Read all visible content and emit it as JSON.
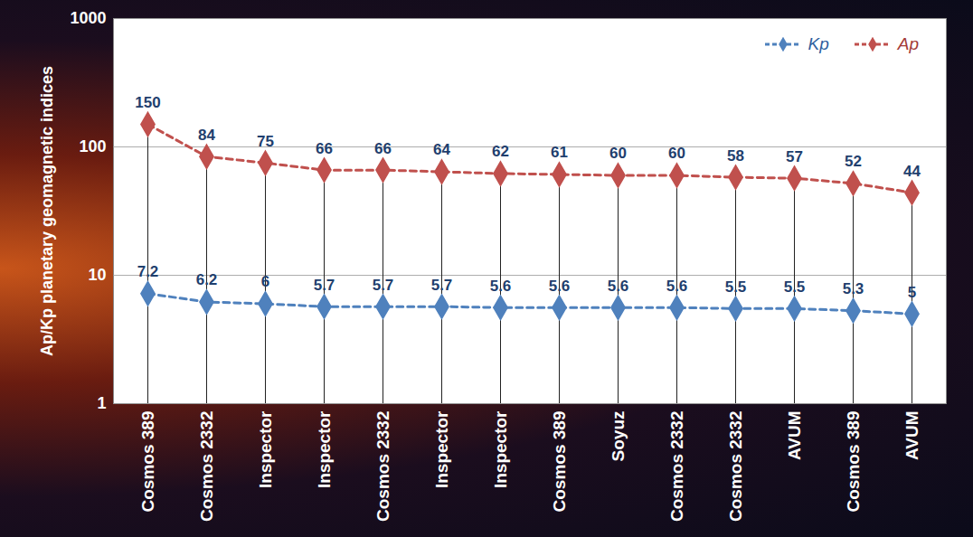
{
  "chart_data": {
    "type": "line",
    "categories": [
      "Cosmos 389",
      "Cosmos 2332",
      "Inspector",
      "Inspector",
      "Cosmos 2332",
      "Inspector",
      "Inspector",
      "Cosmos 389",
      "Soyuz",
      "Cosmos 2332",
      "Cosmos 2332",
      "AVUM",
      "Cosmos 389",
      "AVUM"
    ],
    "series": [
      {
        "name": "Kp",
        "color": "#4f81bd",
        "marker": "diamond",
        "line_style": "dashed",
        "values": [
          7.2,
          6.2,
          6,
          5.7,
          5.7,
          5.7,
          5.6,
          5.6,
          5.6,
          5.6,
          5.5,
          5.5,
          5.3,
          5
        ]
      },
      {
        "name": "Ap",
        "color": "#c0504d",
        "marker": "diamond",
        "line_style": "dashed",
        "values": [
          150,
          84,
          75,
          66,
          66,
          64,
          62,
          61,
          60,
          60,
          58,
          57,
          52,
          44
        ]
      }
    ],
    "ylabel": "Ap/Kp planetary geomagnetic indices",
    "ylim": [
      1,
      1000
    ],
    "yticks": [
      1,
      10,
      100,
      1000
    ],
    "log": "y",
    "grid": true,
    "legend": "top-right",
    "data_labels": true
  }
}
